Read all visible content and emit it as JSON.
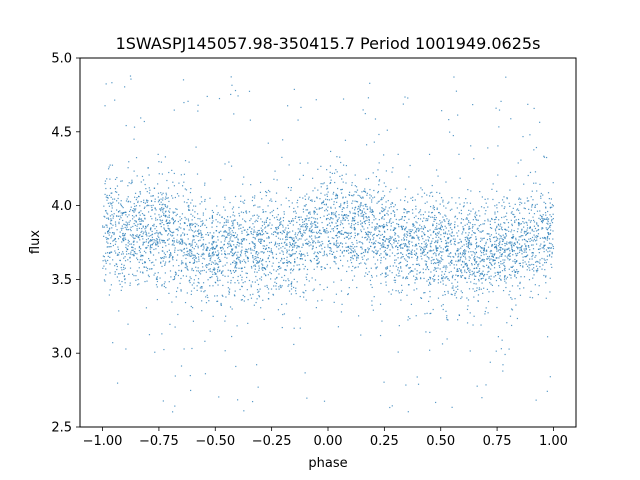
{
  "chart_data": {
    "type": "scatter",
    "title": "1SWASPJ145057.98-350415.7 Period 1001949.0625s",
    "xlabel": "phase",
    "ylabel": "flux",
    "xlim": [
      -1.1,
      1.1
    ],
    "ylim": [
      2.5,
      5.0
    ],
    "x_ticks": [
      -1.0,
      -0.75,
      -0.5,
      -0.25,
      0.0,
      0.25,
      0.5,
      0.75,
      1.0
    ],
    "x_tick_labels": [
      "−1.00",
      "−0.75",
      "−0.50",
      "−0.25",
      "0.00",
      "0.25",
      "0.50",
      "0.75",
      "1.00"
    ],
    "y_ticks": [
      2.5,
      3.0,
      3.5,
      4.0,
      4.5,
      5.0
    ],
    "y_tick_labels": [
      "2.5",
      "3.0",
      "3.5",
      "4.0",
      "4.5",
      "5.0"
    ],
    "grid": false,
    "legend": "none",
    "point_color": "#1f77b4",
    "series": [
      {
        "x_range": [
          -1.0,
          1.0
        ],
        "approx_points": 20000,
        "trend": {
          "phase": [
            -1.0,
            -0.9,
            -0.75,
            -0.5,
            -0.35,
            -0.25,
            -0.1,
            0.0,
            0.05,
            0.25,
            0.5,
            0.6,
            0.75,
            0.9,
            1.0
          ],
          "median_flux": [
            3.82,
            3.85,
            3.83,
            3.7,
            3.68,
            3.72,
            3.78,
            3.84,
            3.85,
            3.8,
            3.7,
            3.66,
            3.7,
            3.78,
            3.82
          ]
        },
        "typical_spread": 0.18,
        "outlier_range": [
          2.6,
          4.9
        ]
      }
    ]
  }
}
